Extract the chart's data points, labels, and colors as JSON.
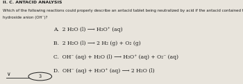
{
  "title": "II. C. ANTACID ANALYSIS",
  "subtitle_line1": "Which of the following reactions could properly describe an antacid tablet being neutralized by acid if the antacid contained the",
  "subtitle_line2": "hydroxide anion (OH⁻)?",
  "options": [
    "A.  2 H₂O (l) ⟶ H₃O⁺ (aq)",
    "B.  2 H₂O (l) ⟶ 2 H₂ (g) + O₂ (g)",
    "C.  OH⁻ (aq) + H₂O (l) ⟶ H₃O⁺ (aq) + O₂⁻ (aq)",
    "D.  OH⁻ (aq) + H₃O⁺ (aq) ⟶ 2 H₂O (l)"
  ],
  "bg_color": "#e8e4dc",
  "text_color": "#1a1a1a",
  "title_fontsize": 4.5,
  "subtitle_fontsize": 4.0,
  "option_fontsize": 5.5,
  "footer_num": "3"
}
